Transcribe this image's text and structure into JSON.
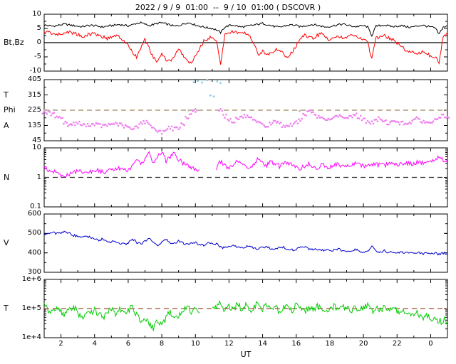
{
  "chart_data": {
    "type": "line",
    "title": "2022 / 9 / 9  01:00  --  9 / 10  01:00 ( DSCOVR )",
    "xlabel": "UT",
    "legend_position": "none",
    "grid": false,
    "x_axis": {
      "unit": "hours UT",
      "start": 1,
      "step": 0.25,
      "count": 97,
      "range": [
        1,
        25
      ],
      "ticks": [
        {
          "v": 2,
          "t": "2"
        },
        {
          "v": 4,
          "t": "4"
        },
        {
          "v": 6,
          "t": "6"
        },
        {
          "v": 8,
          "t": "8"
        },
        {
          "v": 10,
          "t": "10"
        },
        {
          "v": 12,
          "t": "12"
        },
        {
          "v": 14,
          "t": "14"
        },
        {
          "v": 16,
          "t": "16"
        },
        {
          "v": 18,
          "t": "18"
        },
        {
          "v": 20,
          "t": "20"
        },
        {
          "v": 22,
          "t": "22"
        },
        {
          "v": 24,
          "t": "0"
        }
      ]
    },
    "panels": [
      {
        "id": "mag",
        "left_label": "Bt,Bz",
        "label_at": 0,
        "scale": "linear",
        "range": [
          -10,
          10
        ],
        "yticks": [
          {
            "v": 10,
            "t": "10"
          },
          {
            "v": 5,
            "t": "5"
          },
          {
            "v": 0,
            "t": "0"
          },
          {
            "v": -5,
            "t": "-5"
          },
          {
            "v": -10,
            "t": "-10"
          }
        ],
        "yminor": 2.5,
        "zero_line": true
      },
      {
        "id": "phi",
        "left_labels": [
          {
            "t": "T",
            "at": 315
          },
          {
            "t": "Phi",
            "at": 225
          },
          {
            "t": "A",
            "at": 135
          }
        ],
        "scale": "linear",
        "range": [
          45,
          405
        ],
        "yticks": [
          {
            "v": 405,
            "t": "405"
          },
          {
            "v": 315,
            "t": "315"
          },
          {
            "v": 225,
            "t": "225"
          },
          {
            "v": 135,
            "t": "135"
          },
          {
            "v": 45,
            "t": "45"
          }
        ],
        "yminor": 45,
        "dashed": {
          "at": 225,
          "color": "#a5835a"
        }
      },
      {
        "id": "n",
        "left_label": "N",
        "label_at": 1,
        "scale": "log",
        "range": [
          0.1,
          10
        ],
        "yticks": [
          {
            "v": 10,
            "t": "10"
          },
          {
            "v": 1,
            "t": "1"
          },
          {
            "v": 0.1,
            "t": "0.1"
          }
        ],
        "dashed": {
          "at": 1,
          "color": "#303030"
        }
      },
      {
        "id": "v",
        "left_label": "V",
        "label_at": 450,
        "scale": "linear",
        "range": [
          300,
          600
        ],
        "yticks": [
          {
            "v": 600,
            "t": "600"
          },
          {
            "v": 500,
            "t": "500"
          },
          {
            "v": 400,
            "t": "400"
          },
          {
            "v": 300,
            "t": "300"
          }
        ],
        "yminor": 50
      },
      {
        "id": "t",
        "left_label": "T",
        "label_at": 100000,
        "scale": "log",
        "range": [
          10000,
          1000000
        ],
        "yticks": [
          {
            "v": 1000000,
            "t": "1e+6"
          },
          {
            "v": 100000,
            "t": "1e+5"
          },
          {
            "v": 10000,
            "t": "1e+4"
          }
        ],
        "dashed": {
          "at": 100000,
          "color": "#a0522d"
        }
      }
    ],
    "series": [
      {
        "name": "Bt",
        "panel": "mag",
        "color": "#000000",
        "jitter": 0.35,
        "values": [
          6.2,
          6.0,
          5.8,
          6.0,
          6.3,
          6.5,
          6.2,
          6.0,
          5.8,
          5.6,
          5.9,
          6.1,
          6.0,
          5.7,
          5.5,
          5.8,
          6.0,
          6.2,
          6.4,
          6.1,
          5.9,
          6.3,
          6.8,
          7.0,
          6.5,
          6.0,
          6.4,
          6.8,
          7.0,
          6.6,
          6.2,
          5.8,
          6.0,
          6.5,
          7.0,
          6.8,
          6.2,
          5.8,
          5.5,
          5.2,
          5.0,
          4.5,
          3.5,
          5.5,
          6.0,
          6.2,
          5.8,
          5.5,
          5.7,
          6.0,
          6.2,
          6.5,
          6.8,
          6.4,
          6.0,
          5.6,
          5.4,
          5.8,
          6.1,
          6.3,
          6.0,
          5.6,
          5.9,
          6.2,
          6.4,
          6.1,
          5.8,
          5.5,
          5.7,
          6.0,
          6.3,
          6.5,
          6.2,
          5.9,
          5.6,
          5.8,
          6.0,
          5.5,
          2.5,
          5.8,
          6.0,
          6.2,
          5.9,
          5.6,
          5.8,
          6.0,
          5.7,
          5.4,
          5.6,
          5.9,
          6.1,
          5.8,
          5.5,
          5.2,
          3.0,
          5.5,
          5.8
        ]
      },
      {
        "name": "Bz",
        "panel": "mag",
        "color": "#ff0000",
        "jitter": 0.6,
        "values": [
          3.5,
          3.8,
          3.2,
          2.8,
          3.0,
          3.5,
          3.8,
          3.4,
          2.8,
          2.2,
          2.6,
          3.0,
          3.2,
          2.8,
          2.0,
          1.5,
          2.0,
          2.5,
          1.8,
          0.5,
          -1.0,
          -3.5,
          -5.0,
          -2.0,
          1.0,
          -2.0,
          -5.5,
          -6.5,
          -4.0,
          -6.0,
          -6.5,
          -5.0,
          -2.0,
          -4.5,
          -6.5,
          -7.0,
          -5.0,
          -2.0,
          0.5,
          1.5,
          2.0,
          1.0,
          -7.5,
          2.5,
          3.5,
          4.0,
          3.5,
          3.0,
          3.5,
          2.5,
          -1.0,
          -4.0,
          -3.0,
          -4.5,
          -3.5,
          -2.5,
          -3.0,
          -4.0,
          -5.0,
          -3.5,
          -1.0,
          1.5,
          2.5,
          2.0,
          1.5,
          2.5,
          3.0,
          2.0,
          1.0,
          2.0,
          2.5,
          1.5,
          2.0,
          2.8,
          2.2,
          1.5,
          1.0,
          0.5,
          -6.0,
          1.5,
          2.0,
          2.5,
          1.8,
          1.0,
          0.0,
          -1.5,
          -2.5,
          -3.0,
          -3.5,
          -4.0,
          -3.0,
          -4.0,
          -4.5,
          -5.0,
          -7.0,
          2.5,
          3.0
        ]
      },
      {
        "name": "Phi",
        "panel": "phi",
        "color": "#ee82ee",
        "style": "scatter",
        "jitter": 10,
        "values": [
          215,
          210,
          200,
          190,
          180,
          150,
          140,
          145,
          150,
          140,
          135,
          140,
          145,
          138,
          132,
          136,
          142,
          148,
          140,
          130,
          125,
          110,
          130,
          150,
          155,
          145,
          120,
          105,
          95,
          110,
          125,
          115,
          120,
          140,
          180,
          210,
          220,
          null,
          null,
          null,
          null,
          null,
          230,
          190,
          170,
          160,
          175,
          185,
          190,
          175,
          160,
          150,
          140,
          130,
          145,
          160,
          150,
          135,
          125,
          140,
          155,
          170,
          200,
          215,
          205,
          190,
          175,
          165,
          170,
          185,
          195,
          180,
          175,
          190,
          200,
          185,
          170,
          160,
          150,
          165,
          175,
          160,
          150,
          155,
          160,
          150,
          145,
          155,
          165,
          175,
          160,
          150,
          155,
          165,
          180,
          190,
          175
        ]
      },
      {
        "name": "N",
        "panel": "n",
        "color": "#ff00ff",
        "jitter": 0.08,
        "values": [
          2.0,
          1.8,
          1.6,
          1.4,
          1.2,
          1.1,
          1.3,
          1.5,
          1.6,
          1.5,
          1.4,
          1.6,
          1.8,
          1.7,
          1.5,
          1.6,
          1.8,
          2.0,
          1.9,
          1.7,
          1.8,
          2.5,
          3.5,
          2.8,
          4.0,
          6.5,
          3.0,
          5.5,
          7.5,
          3.5,
          5.0,
          8.0,
          4.0,
          3.0,
          2.5,
          2.2,
          2.0,
          1.8,
          null,
          null,
          null,
          2.0,
          3.5,
          2.5,
          2.2,
          2.8,
          3.5,
          3.0,
          2.5,
          2.2,
          2.8,
          4.5,
          3.0,
          2.5,
          3.5,
          2.8,
          2.4,
          2.8,
          3.2,
          2.6,
          2.2,
          2.0,
          2.4,
          2.8,
          2.5,
          2.2,
          2.6,
          2.4,
          2.2,
          2.5,
          2.8,
          2.5,
          2.3,
          2.6,
          2.9,
          2.6,
          2.4,
          2.7,
          3.0,
          2.6,
          2.8,
          2.5,
          2.9,
          2.7,
          2.5,
          2.8,
          3.2,
          2.9,
          3.0,
          3.4,
          3.0,
          3.3,
          3.6,
          4.0,
          5.0,
          3.8,
          4.2
        ]
      },
      {
        "name": "V",
        "panel": "v",
        "color": "#0000cc",
        "jitter": 6,
        "values": [
          495,
          500,
          505,
          498,
          505,
          512,
          500,
          490,
          485,
          480,
          488,
          478,
          470,
          465,
          472,
          460,
          455,
          462,
          450,
          445,
          450,
          470,
          455,
          445,
          460,
          480,
          450,
          440,
          455,
          470,
          445,
          450,
          460,
          450,
          445,
          448,
          452,
          445,
          440,
          450,
          445,
          448,
          430,
          425,
          435,
          442,
          430,
          425,
          430,
          438,
          425,
          420,
          428,
          435,
          422,
          418,
          425,
          430,
          420,
          415,
          420,
          428,
          432,
          420,
          415,
          418,
          412,
          415,
          410,
          415,
          420,
          412,
          408,
          412,
          418,
          410,
          405,
          410,
          435,
          408,
          405,
          410,
          402,
          405,
          400,
          405,
          398,
          402,
          398,
          402,
          395,
          398,
          395,
          400,
          392,
          398,
          395
        ]
      },
      {
        "name": "T",
        "panel": "t",
        "color": "#00cc00",
        "jitter": 0.12,
        "values": [
          120000,
          90000,
          70000,
          110000,
          80000,
          60000,
          90000,
          120000,
          70000,
          50000,
          80000,
          60000,
          90000,
          70000,
          50000,
          80000,
          100000,
          70000,
          90000,
          60000,
          80000,
          120000,
          60000,
          40000,
          50000,
          30000,
          20000,
          40000,
          25000,
          50000,
          80000,
          40000,
          60000,
          90000,
          120000,
          80000,
          100000,
          70000,
          null,
          null,
          90000,
          110000,
          150000,
          80000,
          120000,
          90000,
          140000,
          100000,
          130000,
          80000,
          110000,
          160000,
          100000,
          130000,
          90000,
          120000,
          80000,
          110000,
          140000,
          90000,
          120000,
          100000,
          80000,
          110000,
          90000,
          120000,
          100000,
          80000,
          100000,
          120000,
          90000,
          110000,
          100000,
          80000,
          110000,
          90000,
          100000,
          120000,
          80000,
          100000,
          90000,
          110000,
          80000,
          90000,
          80000,
          90000,
          70000,
          80000,
          60000,
          70000,
          50000,
          60000,
          40000,
          50000,
          35000,
          40000,
          35000
        ]
      }
    ],
    "extra_scatter": [
      {
        "name": "phi-alt-scatter-cyan",
        "panel": "phi",
        "color": "#87ceeb",
        "points": [
          [
            9.9,
            390
          ],
          [
            10.15,
            398
          ],
          [
            10.4,
            388
          ],
          [
            10.7,
            402
          ],
          [
            10.9,
            312
          ],
          [
            11.1,
            306
          ],
          [
            11.3,
            395
          ],
          [
            11.5,
            385
          ]
        ]
      },
      {
        "name": "phi-alt-scatter-gray",
        "panel": "phi",
        "color": "#b8b8b8",
        "points": [
          [
            1.05,
            228
          ],
          [
            1.3,
            221
          ],
          [
            1.6,
            226
          ],
          [
            9.6,
            224
          ],
          [
            10.0,
            232
          ],
          [
            16.2,
            221
          ]
        ]
      }
    ]
  }
}
